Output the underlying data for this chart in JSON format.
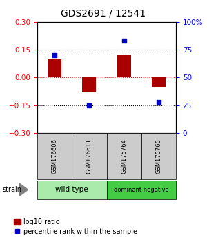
{
  "title": "GDS2691 / 12541",
  "samples": [
    "GSM176606",
    "GSM176611",
    "GSM175764",
    "GSM175765"
  ],
  "log10_ratio": [
    0.1,
    -0.08,
    0.12,
    -0.05
  ],
  "percentile_rank": [
    70,
    25,
    83,
    28
  ],
  "ylim_left": [
    -0.3,
    0.3
  ],
  "ylim_right": [
    0,
    100
  ],
  "yticks_left": [
    -0.3,
    -0.15,
    0,
    0.15,
    0.3
  ],
  "yticks_right": [
    0,
    25,
    50,
    75,
    100
  ],
  "ytick_labels_right": [
    "0",
    "25",
    "50",
    "75",
    "100%"
  ],
  "hlines_dotted": [
    -0.15,
    0.15
  ],
  "hline_red": 0.0,
  "bar_color": "#aa0000",
  "dot_color": "#0000cc",
  "bar_width": 0.4,
  "groups": [
    {
      "label": "wild type",
      "samples": [
        0,
        1
      ],
      "color": "#aaeaaa"
    },
    {
      "label": "dominant negative",
      "samples": [
        2,
        3
      ],
      "color": "#44cc44"
    }
  ],
  "strain_label": "strain",
  "legend_bar_label": "log10 ratio",
  "legend_dot_label": "percentile rank within the sample",
  "bg_color": "#ffffff",
  "plot_bg_color": "#ffffff",
  "sample_box_color": "#cccccc",
  "title_fontsize": 10,
  "tick_fontsize": 7.5
}
